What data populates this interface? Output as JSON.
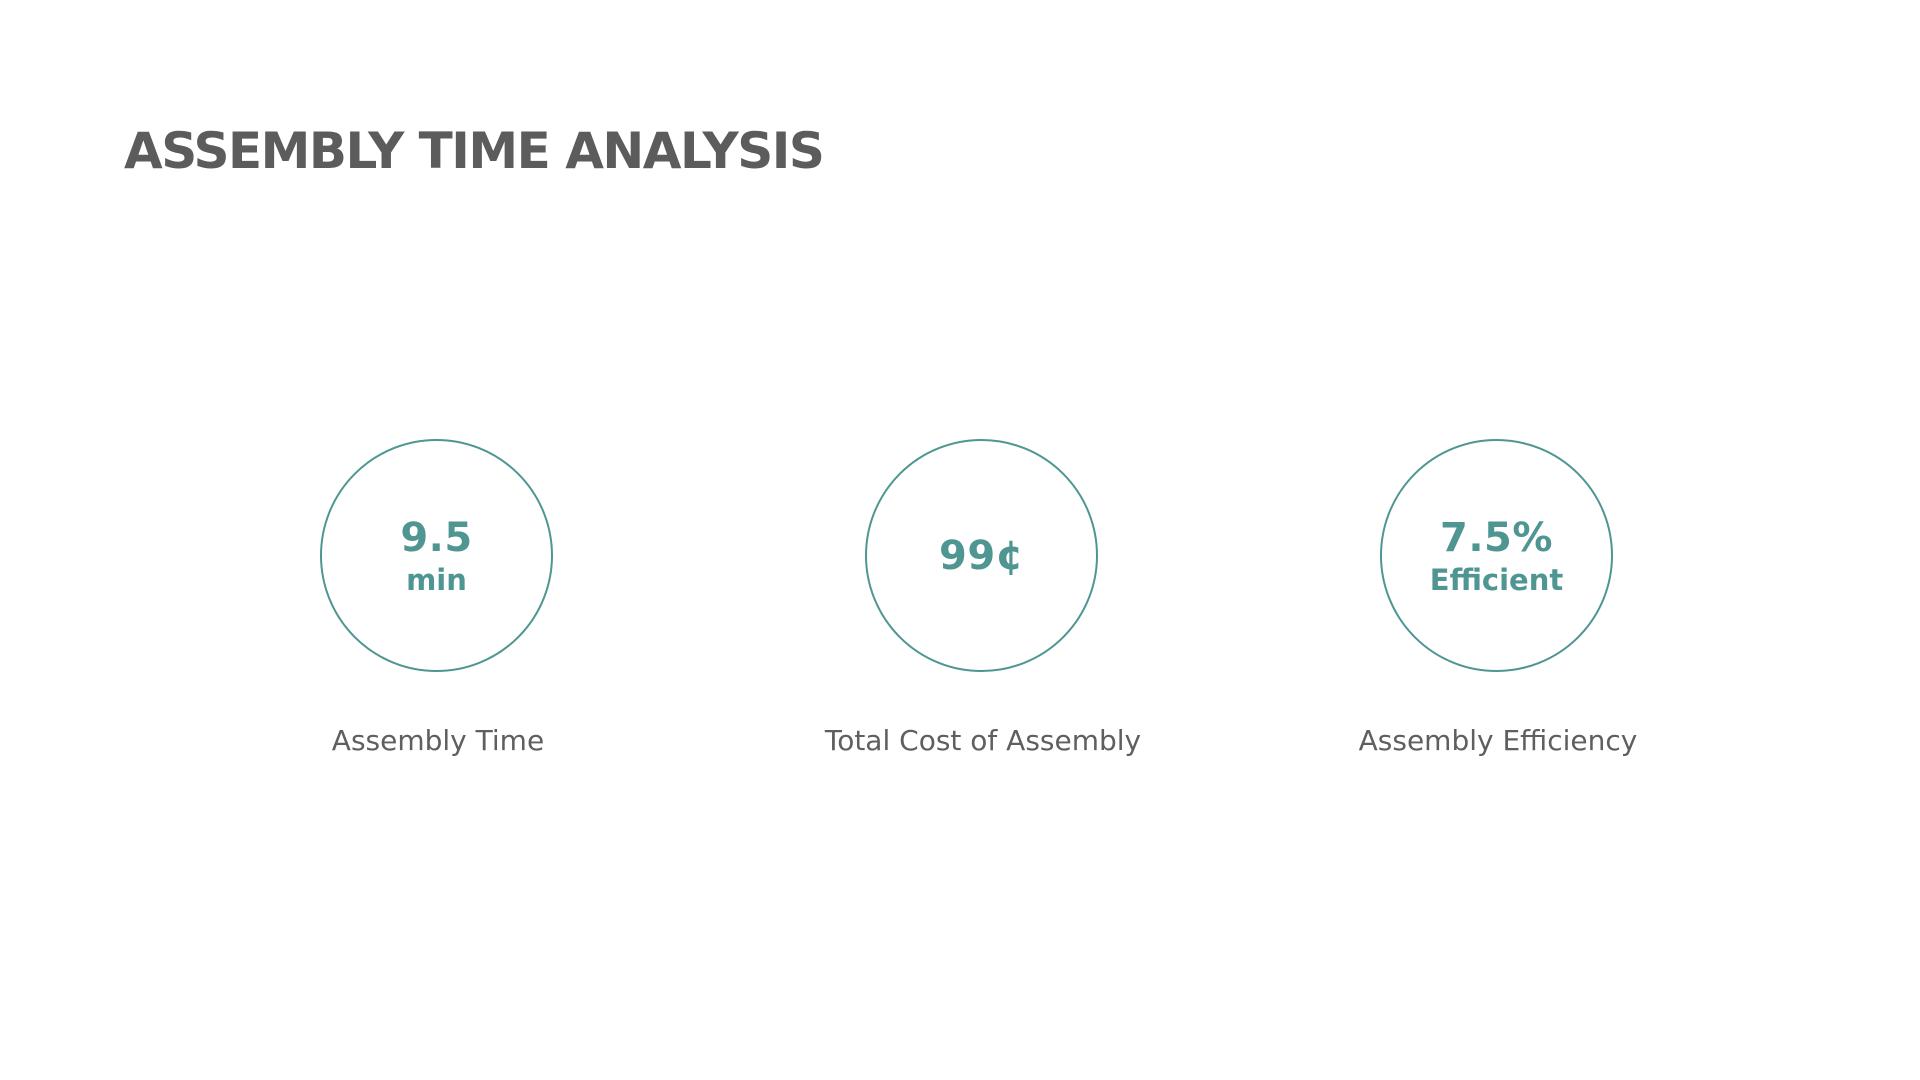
{
  "slide": {
    "title": "ASSEMBLY TIME ANALYSIS"
  },
  "metrics": [
    {
      "value": "9.5",
      "unit": "min",
      "label": "Assembly Time"
    },
    {
      "value": "99¢",
      "unit": "",
      "label": "Total Cost of Assembly"
    },
    {
      "value": "7.5%",
      "unit": "Efficient",
      "label": "Assembly Efficiency"
    }
  ],
  "colors": {
    "accent": "#4f9693",
    "title": "#5c5c5c",
    "label": "#5f5f5f",
    "background": "#ffffff"
  }
}
